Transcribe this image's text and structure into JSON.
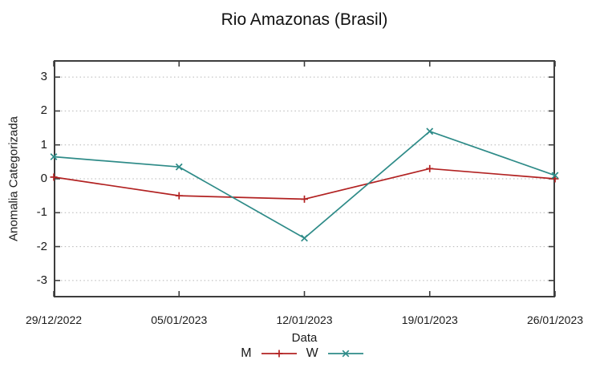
{
  "chart_data": {
    "type": "line",
    "title": "Rio Amazonas (Brasil)",
    "xlabel": "Data",
    "ylabel": "Anomalia Categorizada",
    "categories": [
      "29/12/2022",
      "05/01/2023",
      "12/01/2023",
      "19/01/2023",
      "26/01/2023"
    ],
    "series": [
      {
        "name": "M",
        "color": "#b22222",
        "marker": "plus",
        "values": [
          0.05,
          -0.5,
          -0.6,
          0.3,
          0.0
        ]
      },
      {
        "name": "W",
        "color": "#2e8b88",
        "marker": "cross",
        "values": [
          0.65,
          0.35,
          -1.75,
          1.4,
          0.1
        ]
      }
    ],
    "yticks": [
      3,
      2,
      1,
      0,
      -1,
      -2,
      -3
    ],
    "ylim": [
      -3.5,
      3.5
    ],
    "grid": "horizontal-dotted",
    "legend_position": "bottom-center",
    "axis_color": "#3d3d3d",
    "grid_color": "#b5b5b5",
    "text_color": "#1a1a1a"
  }
}
